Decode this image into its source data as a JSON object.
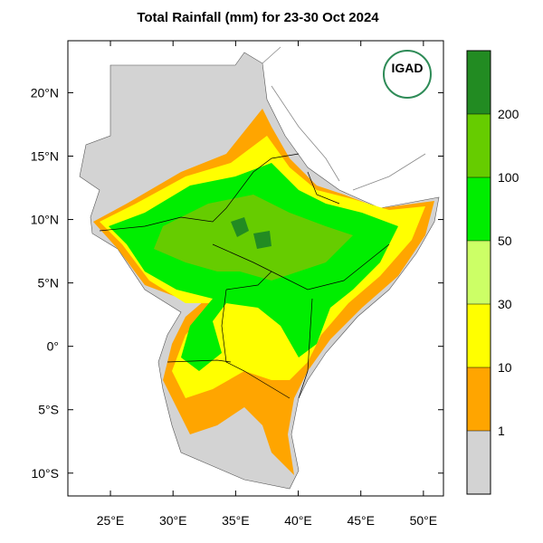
{
  "chart_data": {
    "type": "map",
    "title": "Total Rainfall (mm) for 23-30 Oct 2024",
    "logo": "IGAD",
    "xlim": [
      21.6,
      51.6
    ],
    "ylim": [
      -11.8,
      24.1
    ],
    "xticks": [
      {
        "value": 25,
        "label": "25°E"
      },
      {
        "value": 30,
        "label": "30°E"
      },
      {
        "value": 35,
        "label": "35°E"
      },
      {
        "value": 40,
        "label": "40°E"
      },
      {
        "value": 45,
        "label": "45°E"
      },
      {
        "value": 50,
        "label": "50°E"
      }
    ],
    "yticks": [
      {
        "value": 20,
        "label": "20°N"
      },
      {
        "value": 15,
        "label": "15°N"
      },
      {
        "value": 10,
        "label": "10°N"
      },
      {
        "value": 5,
        "label": "5°N"
      },
      {
        "value": 0,
        "label": "0°"
      },
      {
        "value": -5,
        "label": "5°S"
      },
      {
        "value": -10,
        "label": "10°S"
      }
    ],
    "levels": [
      1,
      10,
      30,
      50,
      100,
      200
    ],
    "colors": [
      "#d3d3d3",
      "#ffa500",
      "#ffff00",
      "#ccff66",
      "#00ee00",
      "#66cc00",
      "#228b22"
    ]
  }
}
